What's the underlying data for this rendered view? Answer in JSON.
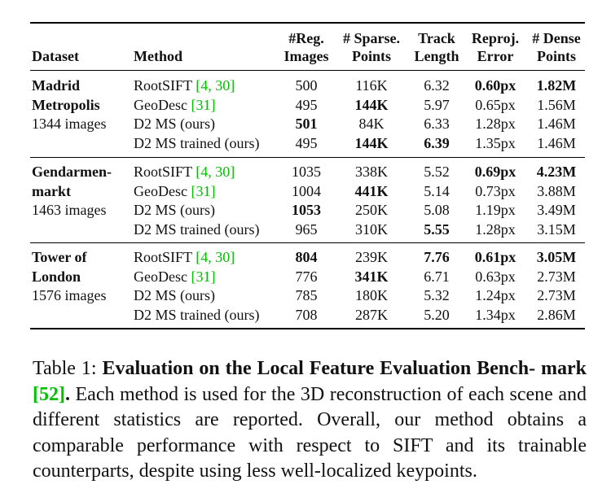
{
  "header": {
    "dataset": "Dataset",
    "method": "Method",
    "reg_images": [
      "#Reg.",
      "Images"
    ],
    "sparse_points": [
      "# Sparse.",
      "Points"
    ],
    "track_length": [
      "Track",
      "Length"
    ],
    "reproj_error": [
      "Reproj.",
      "Error"
    ],
    "dense_points": [
      "# Dense",
      "Points"
    ]
  },
  "groups": [
    {
      "dataset_line1": "Madrid",
      "dataset_line2": "Metropolis",
      "images": "1344 images",
      "rows": [
        {
          "method": "RootSIFT",
          "ref": "[4, 30]",
          "reg": "500",
          "sparse": "116K",
          "track": "6.32",
          "reproj": "0.60px",
          "dense": "1.82M"
        },
        {
          "method": "GeoDesc",
          "ref": "[31]",
          "reg": "495",
          "sparse": "144K",
          "track": "5.97",
          "reproj": "0.65px",
          "dense": "1.56M"
        },
        {
          "method": "D2 MS (ours)",
          "ref": "",
          "reg": "501",
          "sparse": "84K",
          "track": "6.33",
          "reproj": "1.28px",
          "dense": "1.46M"
        },
        {
          "method": "D2 MS trained (ours)",
          "ref": "",
          "reg": "495",
          "sparse": "144K",
          "track": "6.39",
          "reproj": "1.35px",
          "dense": "1.46M"
        }
      ]
    },
    {
      "dataset_line1": "Gendarmen-",
      "dataset_line2": "markt",
      "images": "1463 images",
      "rows": [
        {
          "method": "RootSIFT",
          "ref": "[4, 30]",
          "reg": "1035",
          "sparse": "338K",
          "track": "5.52",
          "reproj": "0.69px",
          "dense": "4.23M"
        },
        {
          "method": "GeoDesc",
          "ref": "[31]",
          "reg": "1004",
          "sparse": "441K",
          "track": "5.14",
          "reproj": "0.73px",
          "dense": "3.88M"
        },
        {
          "method": "D2 MS (ours)",
          "ref": "",
          "reg": "1053",
          "sparse": "250K",
          "track": "5.08",
          "reproj": "1.19px",
          "dense": "3.49M"
        },
        {
          "method": "D2 MS trained (ours)",
          "ref": "",
          "reg": "965",
          "sparse": "310K",
          "track": "5.55",
          "reproj": "1.28px",
          "dense": "3.15M"
        }
      ]
    },
    {
      "dataset_line1": "Tower of",
      "dataset_line2": "London",
      "images": "1576 images",
      "rows": [
        {
          "method": "RootSIFT",
          "ref": "[4, 30]",
          "reg": "804",
          "sparse": "239K",
          "track": "7.76",
          "reproj": "0.61px",
          "dense": "3.05M"
        },
        {
          "method": "GeoDesc",
          "ref": "[31]",
          "reg": "776",
          "sparse": "341K",
          "track": "6.71",
          "reproj": "0.63px",
          "dense": "2.73M"
        },
        {
          "method": "D2 MS (ours)",
          "ref": "",
          "reg": "785",
          "sparse": "180K",
          "track": "5.32",
          "reproj": "1.24px",
          "dense": "2.73M"
        },
        {
          "method": "D2 MS trained (ours)",
          "ref": "",
          "reg": "708",
          "sparse": "287K",
          "track": "5.20",
          "reproj": "1.34px",
          "dense": "2.86M"
        }
      ]
    }
  ],
  "bold_cells": [
    [
      [
        "reproj",
        "dense"
      ],
      [
        "sparse"
      ],
      [
        "reg"
      ],
      [
        "sparse",
        "track"
      ]
    ],
    [
      [
        "reproj",
        "dense"
      ],
      [
        "sparse"
      ],
      [
        "reg"
      ],
      [
        "track"
      ]
    ],
    [
      [
        "reg",
        "track",
        "reproj",
        "dense"
      ],
      [
        "sparse"
      ],
      [],
      []
    ]
  ],
  "caption": {
    "label": "Table 1:",
    "title": "Evaluation on the Local Feature Evaluation Bench- mark",
    "ref": "[52]",
    "ref_end": ".",
    "body": "Each method is used for the 3D reconstruction of each scene and different statistics are reported. Overall, our method obtains a comparable performance with respect to SIFT and its trainable counterparts, despite using less well-localized keypoints."
  }
}
